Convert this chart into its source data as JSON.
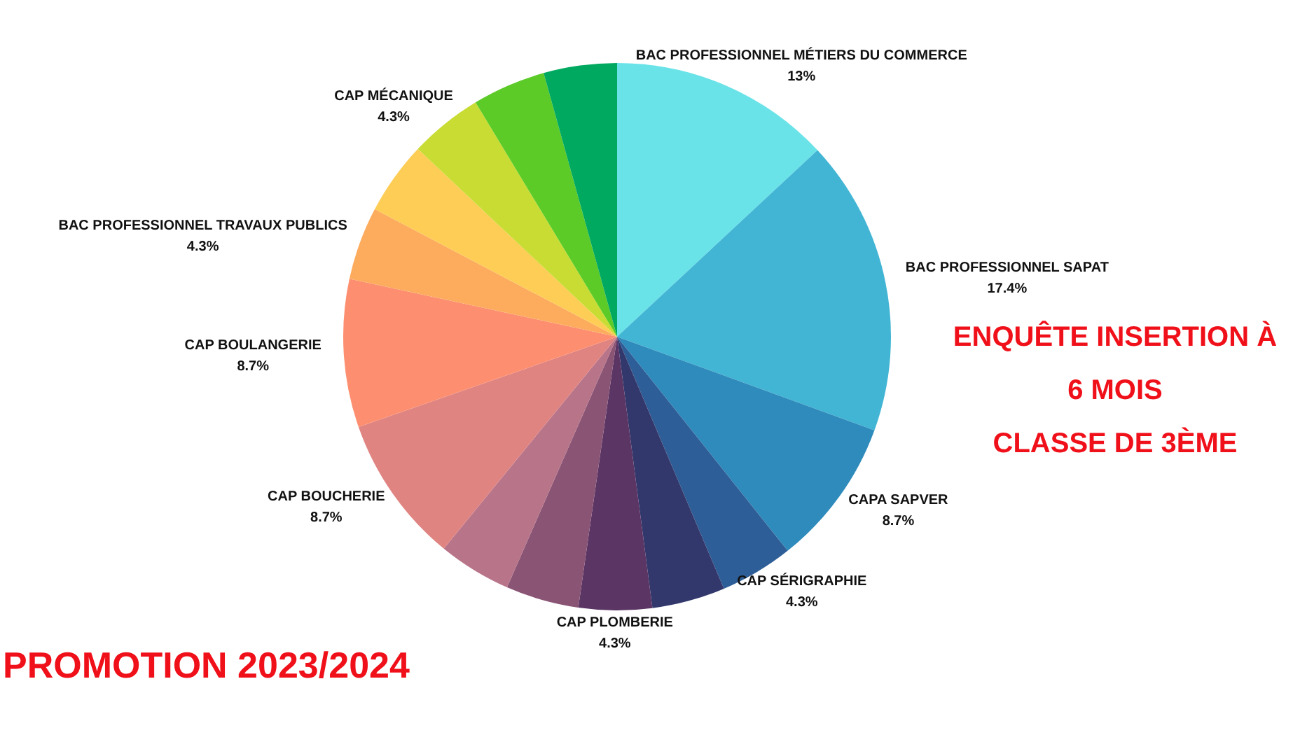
{
  "chart_data": {
    "type": "pie",
    "title": "ENQUÊTE INSERTION À\n6 MOIS\nCLASSE DE 3ÈME",
    "subtitle": "PROMOTION 2023/2024",
    "categories": [
      "BAC PROFESSIONNEL MÉTIERS DU COMMERCE",
      "BAC PROFESSIONNEL SAPAT",
      "CAPA SAPVER",
      "CAP SÉRIGRAPHIE",
      null,
      "CAP PLOMBERIE",
      null,
      null,
      "CAP BOUCHERIE",
      "CAP BOULANGERIE",
      "BAC PROFESSIONNEL TRAVAUX PUBLICS",
      null,
      "CAP MÉCANIQUE",
      null,
      null
    ],
    "values": [
      13,
      17.4,
      8.7,
      4.3,
      4.3,
      4.3,
      4.3,
      4.3,
      8.7,
      8.7,
      4.3,
      4.3,
      4.3,
      4.3,
      4.3
    ],
    "value_labels": [
      "13%",
      "17.4%",
      "8.7%",
      "4.3%",
      null,
      "4.3%",
      null,
      null,
      "8.7%",
      "8.7%",
      "4.3%",
      null,
      "4.3%",
      null,
      null
    ],
    "colors": [
      "#6ae3e8",
      "#42b5d5",
      "#2f8bbb",
      "#2e5e97",
      "#33386c",
      "#5b3564",
      "#8a5474",
      "#b87488",
      "#e08482",
      "#fd8f70",
      "#fdac5e",
      "#fdcd55",
      "#c8dc33",
      "#5ccb28",
      "#00a960"
    ],
    "legend": false
  }
}
